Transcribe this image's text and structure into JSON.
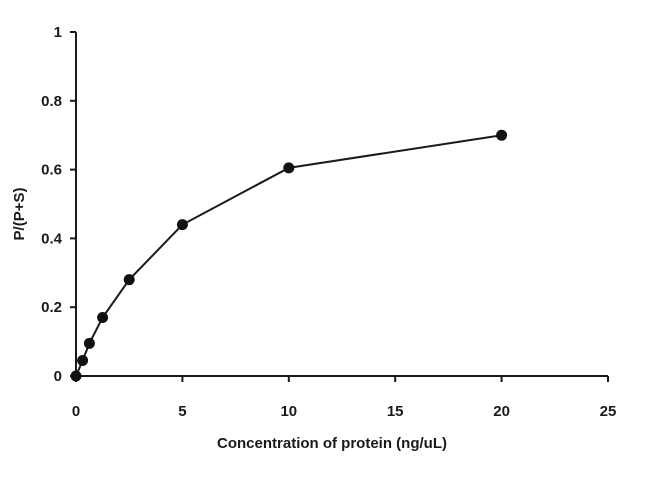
{
  "chart_data": {
    "type": "line",
    "title": "",
    "xlabel": "Concentration of protein (ng/uL)",
    "ylabel": "P/(P+S)",
    "xlim": [
      0,
      25
    ],
    "ylim": [
      0,
      1
    ],
    "xticks": [
      0,
      5,
      10,
      15,
      20,
      25
    ],
    "yticks": [
      0,
      0.2,
      0.4,
      0.6,
      0.8,
      1
    ],
    "xtick_labels": [
      "0",
      "5",
      "10",
      "15",
      "20",
      "25"
    ],
    "ytick_labels": [
      "0",
      "0.2",
      "0.4",
      "0.6",
      "0.8",
      "1"
    ],
    "grid": false,
    "legend": "none",
    "series": [
      {
        "x": [
          0,
          0.31,
          0.63,
          1.25,
          2.5,
          5,
          10,
          20
        ],
        "y": [
          0.0,
          0.045,
          0.095,
          0.17,
          0.28,
          0.44,
          0.605,
          0.7
        ],
        "color": "#111111",
        "marker": "circle"
      }
    ]
  }
}
